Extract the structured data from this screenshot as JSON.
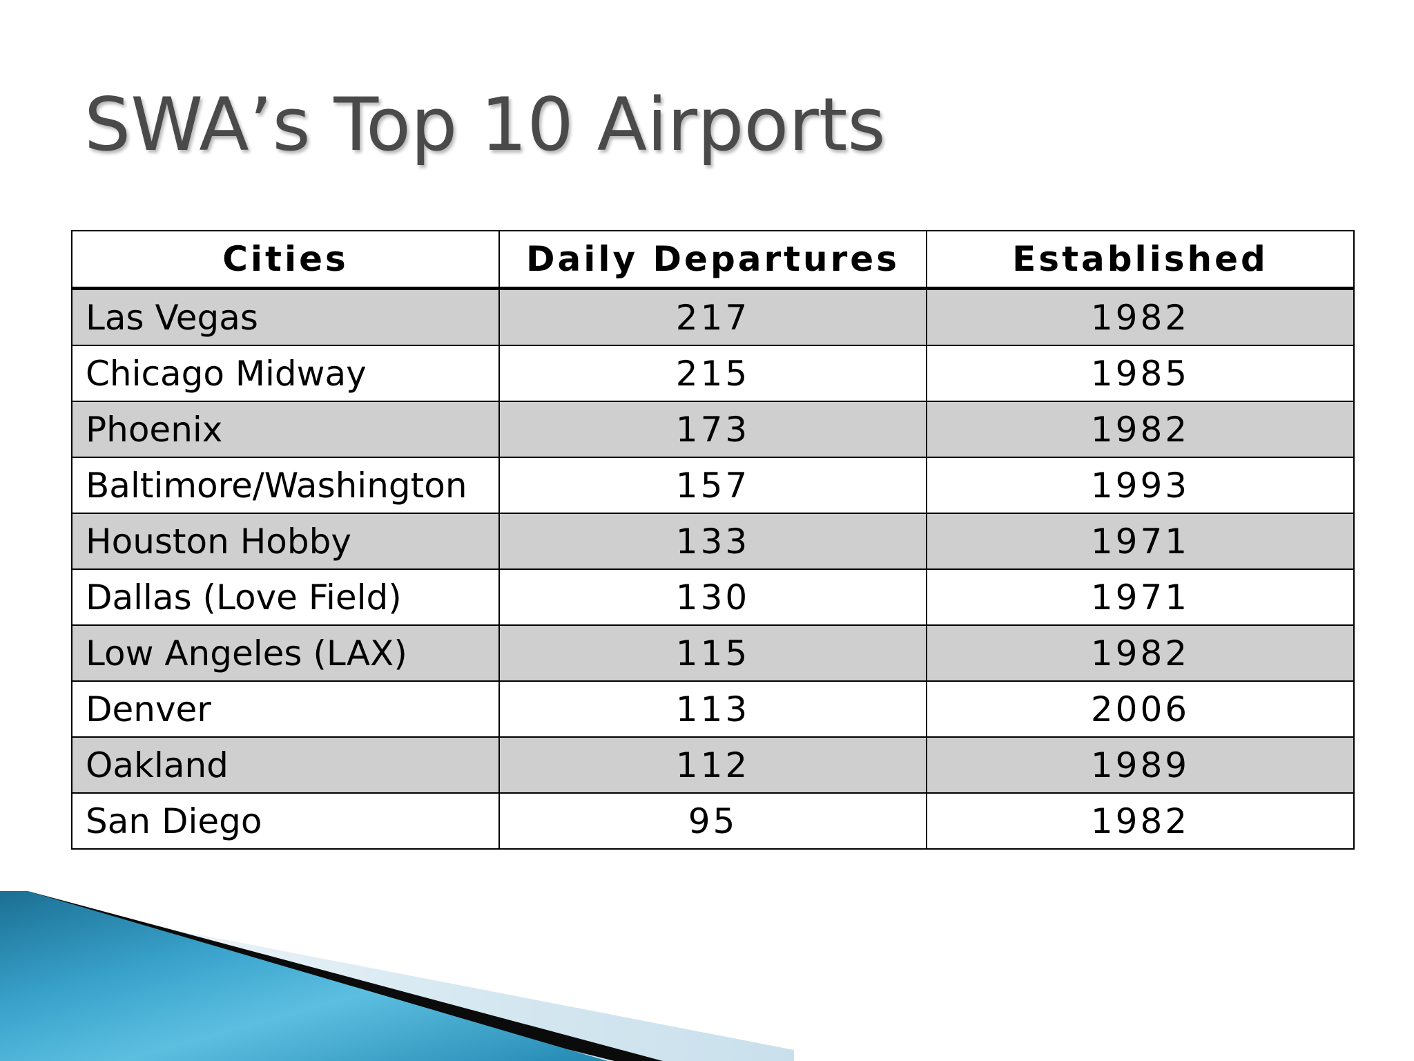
{
  "slide": {
    "title": "SWA’s Top 10 Airports"
  },
  "table": {
    "headers": [
      "Cities",
      "Daily Departures",
      "Established"
    ],
    "rows": [
      [
        "Las Vegas",
        "217",
        "1982"
      ],
      [
        "Chicago Midway",
        "215",
        "1985"
      ],
      [
        "Phoenix",
        "173",
        "1982"
      ],
      [
        "Baltimore/Washington",
        "157",
        "1993"
      ],
      [
        "Houston Hobby",
        "133",
        "1971"
      ],
      [
        "Dallas (Love Field)",
        "130",
        "1971"
      ],
      [
        "Low Angeles (LAX)",
        "115",
        "1982"
      ],
      [
        "Denver",
        "113",
        "2006"
      ],
      [
        "Oakland",
        "112",
        "1989"
      ],
      [
        "San Diego",
        "95",
        "1982"
      ]
    ]
  },
  "colors": {
    "title_text": "#4a4a4a",
    "shaded_row": "#cfcfcf",
    "accent_blue": "#2a8fb8",
    "accent_light": "#d9e9f1"
  }
}
